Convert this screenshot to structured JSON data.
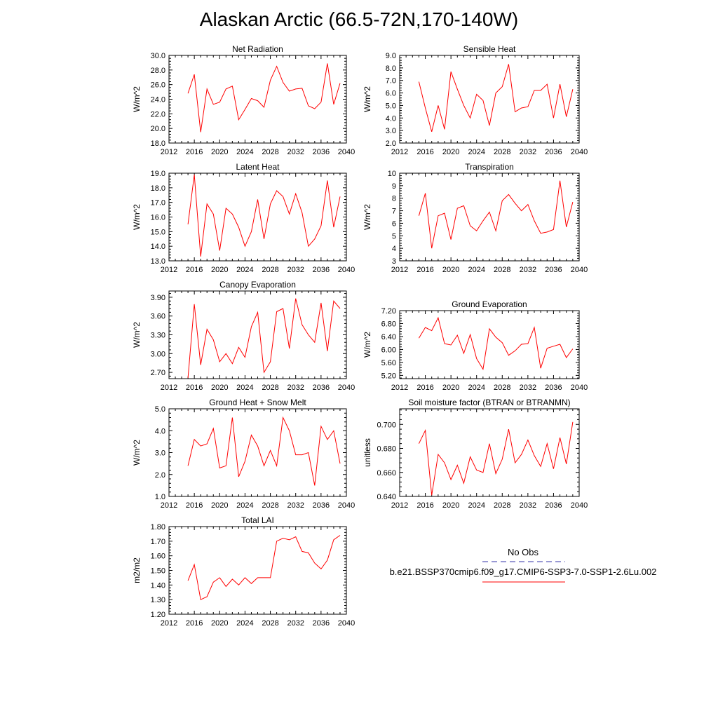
{
  "title": "Alaskan Arctic (66.5-72N,170-140W)",
  "legend": {
    "entries": [
      {
        "label": "No Obs",
        "color": "#3333aa",
        "style": "dashed"
      },
      {
        "label": "b.e21.BSSP370cmip6.f09_g17.CMIP6-SSP3-7.0-SSP1-2.6Lu.002",
        "color": "#ff0000",
        "style": "solid"
      }
    ]
  },
  "chart_data": [
    {
      "type": "line",
      "title": "Net Radiation",
      "ylabel": "W/m^2",
      "xlim": [
        2012,
        2040
      ],
      "xticks": [
        2012,
        2016,
        2020,
        2024,
        2028,
        2032,
        2036,
        2040
      ],
      "ylim": [
        18,
        30
      ],
      "yticks": [
        "18.0",
        "20.0",
        "22.0",
        "24.0",
        "26.0",
        "28.0",
        "30.0"
      ],
      "x": [
        2015,
        2016,
        2017,
        2018,
        2019,
        2020,
        2021,
        2022,
        2023,
        2024,
        2025,
        2026,
        2027,
        2028,
        2029,
        2030,
        2031,
        2032,
        2033,
        2034,
        2035,
        2036,
        2037,
        2038,
        2039
      ],
      "series": [
        {
          "values": [
            24.8,
            27.4,
            19.5,
            25.4,
            23.3,
            23.6,
            25.4,
            25.8,
            21.2,
            22.6,
            24.1,
            23.8,
            22.9,
            26.6,
            28.5,
            26.3,
            25.1,
            25.4,
            25.5,
            23.1,
            22.7,
            23.6,
            28.9,
            23.3,
            26.2
          ],
          "color": "#ff0000"
        }
      ]
    },
    {
      "type": "line",
      "title": "Sensible Heat",
      "ylabel": "W/m^2",
      "xlim": [
        2012,
        2040
      ],
      "xticks": [
        2012,
        2016,
        2020,
        2024,
        2028,
        2032,
        2036,
        2040
      ],
      "ylim": [
        2,
        9
      ],
      "yticks": [
        "2.0",
        "3.0",
        "4.0",
        "5.0",
        "6.0",
        "7.0",
        "8.0",
        "9.0"
      ],
      "x": [
        2015,
        2016,
        2017,
        2018,
        2019,
        2020,
        2021,
        2022,
        2023,
        2024,
        2025,
        2026,
        2027,
        2028,
        2029,
        2030,
        2031,
        2032,
        2033,
        2034,
        2035,
        2036,
        2037,
        2038,
        2039
      ],
      "series": [
        {
          "values": [
            6.9,
            4.8,
            2.9,
            5.0,
            3.1,
            7.7,
            6.3,
            5.0,
            4.0,
            5.9,
            5.4,
            3.4,
            6.0,
            6.5,
            8.3,
            4.5,
            4.8,
            4.9,
            6.2,
            6.2,
            6.7,
            4.0,
            6.7,
            4.1,
            6.3
          ],
          "color": "#ff0000"
        }
      ]
    },
    {
      "type": "line",
      "title": "Latent Heat",
      "ylabel": "W/m^2",
      "xlim": [
        2012,
        2040
      ],
      "xticks": [
        2012,
        2016,
        2020,
        2024,
        2028,
        2032,
        2036,
        2040
      ],
      "ylim": [
        13,
        19
      ],
      "yticks": [
        "13.0",
        "14.0",
        "15.0",
        "16.0",
        "17.0",
        "18.0",
        "19.0"
      ],
      "x": [
        2015,
        2016,
        2017,
        2018,
        2019,
        2020,
        2021,
        2022,
        2023,
        2024,
        2025,
        2026,
        2027,
        2028,
        2029,
        2030,
        2031,
        2032,
        2033,
        2034,
        2035,
        2036,
        2037,
        2038,
        2039
      ],
      "series": [
        {
          "values": [
            15.5,
            18.9,
            13.3,
            16.9,
            16.2,
            13.7,
            16.6,
            16.2,
            15.3,
            14.0,
            15.0,
            17.2,
            14.5,
            16.9,
            17.8,
            17.4,
            16.2,
            17.6,
            16.3,
            14.0,
            14.5,
            15.4,
            18.5,
            15.3,
            17.4
          ],
          "color": "#ff0000"
        }
      ]
    },
    {
      "type": "line",
      "title": "Transpiration",
      "ylabel": "W/m^2",
      "xlim": [
        2012,
        2040
      ],
      "xticks": [
        2012,
        2016,
        2020,
        2024,
        2028,
        2032,
        2036,
        2040
      ],
      "ylim": [
        3,
        10
      ],
      "yticks": [
        "3",
        "4",
        "5",
        "6",
        "7",
        "8",
        "9",
        "10"
      ],
      "x": [
        2015,
        2016,
        2017,
        2018,
        2019,
        2020,
        2021,
        2022,
        2023,
        2024,
        2025,
        2026,
        2027,
        2028,
        2029,
        2030,
        2031,
        2032,
        2033,
        2034,
        2035,
        2036,
        2037,
        2038,
        2039
      ],
      "series": [
        {
          "values": [
            6.6,
            8.4,
            4.0,
            6.6,
            6.8,
            4.7,
            7.2,
            7.4,
            5.8,
            5.4,
            6.2,
            6.9,
            5.4,
            7.8,
            8.3,
            7.6,
            7.0,
            7.5,
            6.2,
            5.2,
            5.3,
            5.5,
            9.4,
            5.7,
            7.7
          ],
          "color": "#ff0000"
        }
      ]
    },
    {
      "type": "line",
      "title": "Canopy Evaporation",
      "ylabel": "W/m^2",
      "xlim": [
        2012,
        2040
      ],
      "xticks": [
        2012,
        2016,
        2020,
        2024,
        2028,
        2032,
        2036,
        2040
      ],
      "ylim": [
        2.6,
        4.0
      ],
      "yticks": [
        "2.70",
        "3.00",
        "3.30",
        "3.60",
        "3.90"
      ],
      "x": [
        2015,
        2016,
        2017,
        2018,
        2019,
        2020,
        2021,
        2022,
        2023,
        2024,
        2025,
        2026,
        2027,
        2028,
        2029,
        2030,
        2031,
        2032,
        2033,
        2034,
        2035,
        2036,
        2037,
        2038,
        2039
      ],
      "series": [
        {
          "values": [
            2.61,
            3.79,
            2.82,
            3.39,
            3.22,
            2.87,
            3.0,
            2.84,
            3.1,
            2.94,
            3.43,
            3.66,
            2.7,
            2.87,
            3.67,
            3.72,
            3.08,
            3.88,
            3.46,
            3.3,
            3.18,
            3.81,
            3.04,
            3.84,
            3.72
          ],
          "color": "#ff0000"
        }
      ]
    },
    {
      "type": "line",
      "title": "Ground Evaporation",
      "ylabel": "W/m^2",
      "xlim": [
        2012,
        2040
      ],
      "xticks": [
        2012,
        2016,
        2020,
        2024,
        2028,
        2032,
        2036,
        2040
      ],
      "ylim": [
        5.1,
        7.2
      ],
      "yticks": [
        "5.20",
        "5.60",
        "6.00",
        "6.40",
        "6.80",
        "7.20"
      ],
      "x": [
        2015,
        2016,
        2017,
        2018,
        2019,
        2020,
        2021,
        2022,
        2023,
        2024,
        2025,
        2026,
        2027,
        2028,
        2029,
        2030,
        2031,
        2032,
        2033,
        2034,
        2035,
        2036,
        2037,
        2038,
        2039
      ],
      "series": [
        {
          "values": [
            6.35,
            6.68,
            6.58,
            6.98,
            6.18,
            6.14,
            6.44,
            5.88,
            6.46,
            5.72,
            5.39,
            6.64,
            6.38,
            6.21,
            5.82,
            5.96,
            6.16,
            6.18,
            6.68,
            5.42,
            6.04,
            6.1,
            6.16,
            5.75,
            6.02
          ],
          "color": "#ff0000"
        }
      ]
    },
    {
      "type": "line",
      "title": "Ground Heat + Snow Melt",
      "ylabel": "W/m^2",
      "xlim": [
        2012,
        2040
      ],
      "xticks": [
        2012,
        2016,
        2020,
        2024,
        2028,
        2032,
        2036,
        2040
      ],
      "ylim": [
        1,
        5
      ],
      "yticks": [
        "1.0",
        "2.0",
        "3.0",
        "4.0",
        "5.0"
      ],
      "x": [
        2015,
        2016,
        2017,
        2018,
        2019,
        2020,
        2021,
        2022,
        2023,
        2024,
        2025,
        2026,
        2027,
        2028,
        2029,
        2030,
        2031,
        2032,
        2033,
        2034,
        2035,
        2036,
        2037,
        2038,
        2039
      ],
      "series": [
        {
          "values": [
            2.4,
            3.6,
            3.3,
            3.4,
            4.1,
            2.3,
            2.4,
            4.6,
            1.9,
            2.6,
            3.8,
            3.3,
            2.4,
            3.1,
            2.4,
            4.6,
            4.0,
            2.9,
            2.9,
            3.0,
            1.5,
            4.2,
            3.6,
            4.0,
            2.5
          ],
          "color": "#ff0000"
        }
      ]
    },
    {
      "type": "line",
      "title": "Soil moisture factor (BTRAN or BTRANMN)",
      "ylabel": "unitless",
      "xlim": [
        2012,
        2040
      ],
      "xticks": [
        2012,
        2016,
        2020,
        2024,
        2028,
        2032,
        2036,
        2040
      ],
      "ylim": [
        0.64,
        0.713
      ],
      "yticks": [
        "0.640",
        "0.660",
        "0.680",
        "0.700"
      ],
      "x": [
        2015,
        2016,
        2017,
        2018,
        2019,
        2020,
        2021,
        2022,
        2023,
        2024,
        2025,
        2026,
        2027,
        2028,
        2029,
        2030,
        2031,
        2032,
        2033,
        2034,
        2035,
        2036,
        2037,
        2038,
        2039
      ],
      "series": [
        {
          "values": [
            0.684,
            0.695,
            0.641,
            0.675,
            0.668,
            0.654,
            0.666,
            0.651,
            0.673,
            0.662,
            0.66,
            0.684,
            0.659,
            0.671,
            0.696,
            0.668,
            0.675,
            0.687,
            0.674,
            0.665,
            0.684,
            0.663,
            0.689,
            0.667,
            0.702
          ],
          "color": "#ff0000"
        }
      ]
    },
    {
      "type": "line",
      "title": "Total LAI",
      "ylabel": "m2/m2",
      "xlim": [
        2012,
        2040
      ],
      "xticks": [
        2012,
        2016,
        2020,
        2024,
        2028,
        2032,
        2036,
        2040
      ],
      "ylim": [
        1.2,
        1.8
      ],
      "yticks": [
        "1.20",
        "1.30",
        "1.40",
        "1.50",
        "1.60",
        "1.70",
        "1.80"
      ],
      "x": [
        2015,
        2016,
        2017,
        2018,
        2019,
        2020,
        2021,
        2022,
        2023,
        2024,
        2025,
        2026,
        2027,
        2028,
        2029,
        2030,
        2031,
        2032,
        2033,
        2034,
        2035,
        2036,
        2037,
        2038,
        2039
      ],
      "series": [
        {
          "values": [
            1.43,
            1.54,
            1.3,
            1.32,
            1.42,
            1.45,
            1.39,
            1.44,
            1.4,
            1.45,
            1.41,
            1.45,
            1.45,
            1.45,
            1.7,
            1.72,
            1.71,
            1.73,
            1.63,
            1.62,
            1.55,
            1.51,
            1.57,
            1.71,
            1.74
          ],
          "color": "#ff0000"
        }
      ]
    }
  ]
}
